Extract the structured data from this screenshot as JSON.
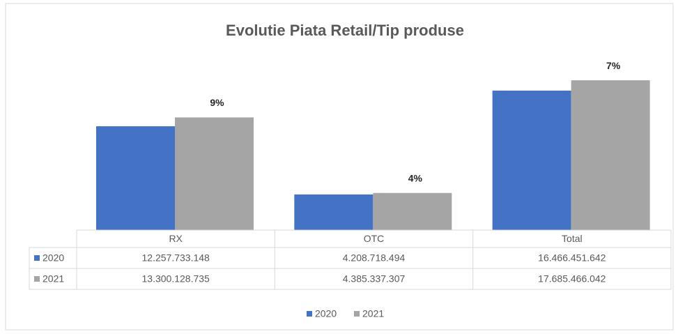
{
  "chart_data": {
    "type": "bar",
    "title": "Evolutie Piata Retail/Tip produse",
    "categories": [
      "RX",
      "OTC",
      "Total"
    ],
    "series": [
      {
        "name": "2020",
        "color": "#4472c4",
        "values": [
          12257733148,
          4208718494,
          16466451642
        ],
        "value_labels": [
          "12.257.733.148",
          "4.208.718.494",
          "16.466.451.642"
        ]
      },
      {
        "name": "2021",
        "color": "#a5a5a5",
        "values": [
          13300128735,
          4385337307,
          17685466042
        ],
        "value_labels": [
          "13.300.128.735",
          "4.385.337.307",
          "17.685.466.042"
        ]
      }
    ],
    "annotations": [
      "9%",
      "4%",
      "7%"
    ],
    "ylim": [
      0,
      20000000000
    ]
  }
}
